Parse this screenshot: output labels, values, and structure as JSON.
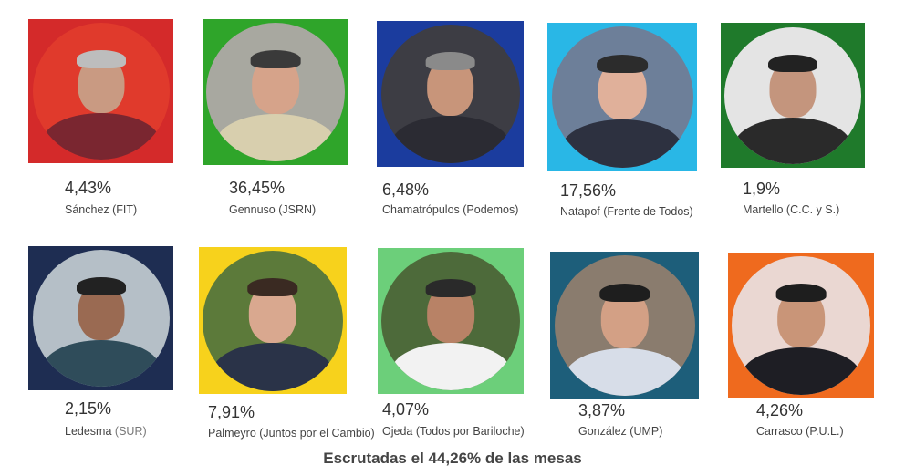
{
  "candidates": [
    {
      "pct": "4,43%",
      "name": "Sánchez (FIT)",
      "tile_color": "#d42a2a",
      "bg": "#e03a2c",
      "skin": "#c99a82",
      "hair": "#bdbdbd",
      "shirt": "#7a2630"
    },
    {
      "pct": "36,45%",
      "name": "Gennuso (JSRN)",
      "tile_color": "#2fa52a",
      "bg": "#a8a8a0",
      "skin": "#d6a38a",
      "hair": "#3a3a3a",
      "shirt": "#d8cfae"
    },
    {
      "pct": "6,48%",
      "name": "Chamatrópulos (Podemos)",
      "tile_color": "#1b3c9e",
      "bg": "#3d3d44",
      "skin": "#c8957a",
      "hair": "#8a8a8a",
      "shirt": "#2b2b33"
    },
    {
      "pct": "17,56%",
      "name": "Natapof (Frente de Todos)",
      "tile_color": "#29b7e6",
      "bg": "#6d7f99",
      "skin": "#e0b09a",
      "hair": "#2c2c2c",
      "shirt": "#2d3140"
    },
    {
      "pct": "1,9%",
      "name": "Martello (C.C. y S.)",
      "tile_color": "#1f7a2b",
      "bg": "#e4e4e4",
      "skin": "#c4957d",
      "hair": "#222222",
      "shirt": "#2a2a2a"
    },
    {
      "pct": "2,15%",
      "name": "Ledesma",
      "name_extra": "(SUR)",
      "tile_color": "#1e2d52",
      "bg": "#b5bfc7",
      "skin": "#9a6a52",
      "hair": "#222222",
      "shirt": "#2f4c5a"
    },
    {
      "pct": "7,91%",
      "name": "Palmeyro (Juntos por el Cambio)",
      "tile_color": "#f7d21c",
      "bg": "#5c7a3a",
      "skin": "#d9a88f",
      "hair": "#3a2a22",
      "shirt": "#2a3348"
    },
    {
      "pct": "4,07%",
      "name": "Ojeda (Todos por Bariloche)",
      "tile_color": "#6ccf7a",
      "bg": "#4d6a3a",
      "skin": "#b88266",
      "hair": "#2a2a2a",
      "shirt": "#f2f2f2"
    },
    {
      "pct": "3,87%",
      "name": "González (UMP)",
      "tile_color": "#1d5e7a",
      "bg": "#8a7c6e",
      "skin": "#d3a085",
      "hair": "#1e1e1e",
      "shirt": "#d7dde8"
    },
    {
      "pct": "4,26%",
      "name": "Carrasco (P.U.L.)",
      "tile_color": "#ef6a1e",
      "bg": "#ead7d2",
      "skin": "#c99578",
      "hair": "#1e1e1e",
      "shirt": "#1e1e24"
    }
  ],
  "footer": "Escrutadas el 44,26% de las mesas"
}
